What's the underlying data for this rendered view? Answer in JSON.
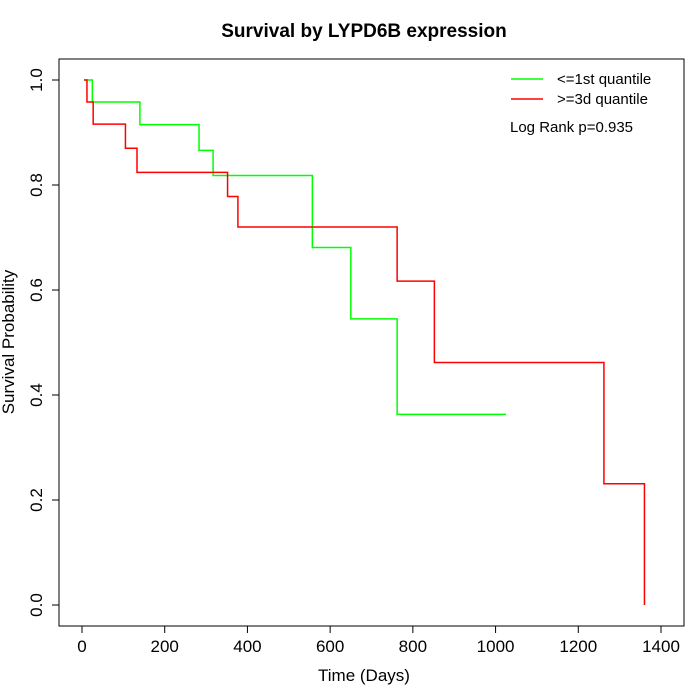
{
  "chart_data": {
    "type": "line",
    "step": true,
    "title": "Survival by LYPD6B expression",
    "xlabel": "Time (Days)",
    "ylabel": "Survival Probability",
    "xlim": [
      0,
      1400
    ],
    "ylim": [
      0,
      1
    ],
    "x_ticks": [
      0,
      200,
      400,
      600,
      800,
      1000,
      1200,
      1400
    ],
    "y_ticks": [
      0.0,
      0.2,
      0.4,
      0.6,
      0.8,
      1.0
    ],
    "x_tick_labels": [
      "0",
      "200",
      "400",
      "600",
      "800",
      "1000",
      "1200",
      "1400"
    ],
    "y_tick_labels": [
      "0.0",
      "0.2",
      "0.4",
      "0.6",
      "0.8",
      "1.0"
    ],
    "grid": false,
    "legend_position": "top-right",
    "annotation": "Log Rank p=0.935",
    "series": [
      {
        "name": "<=1st quantile",
        "color": "#00ff00",
        "x": [
          5,
          25,
          140,
          283,
          317,
          557,
          650,
          762,
          1025
        ],
        "y": [
          1.0,
          0.958,
          0.915,
          0.866,
          0.818,
          0.681,
          0.545,
          0.363,
          0.363
        ]
      },
      {
        "name": ">=3d quantile",
        "color": "#ff0000",
        "x": [
          5,
          12,
          27,
          105,
          133,
          352,
          377,
          762,
          852,
          1262,
          1360
        ],
        "y": [
          1.0,
          0.958,
          0.916,
          0.87,
          0.824,
          0.778,
          0.72,
          0.617,
          0.462,
          0.231,
          0.0
        ]
      }
    ]
  }
}
